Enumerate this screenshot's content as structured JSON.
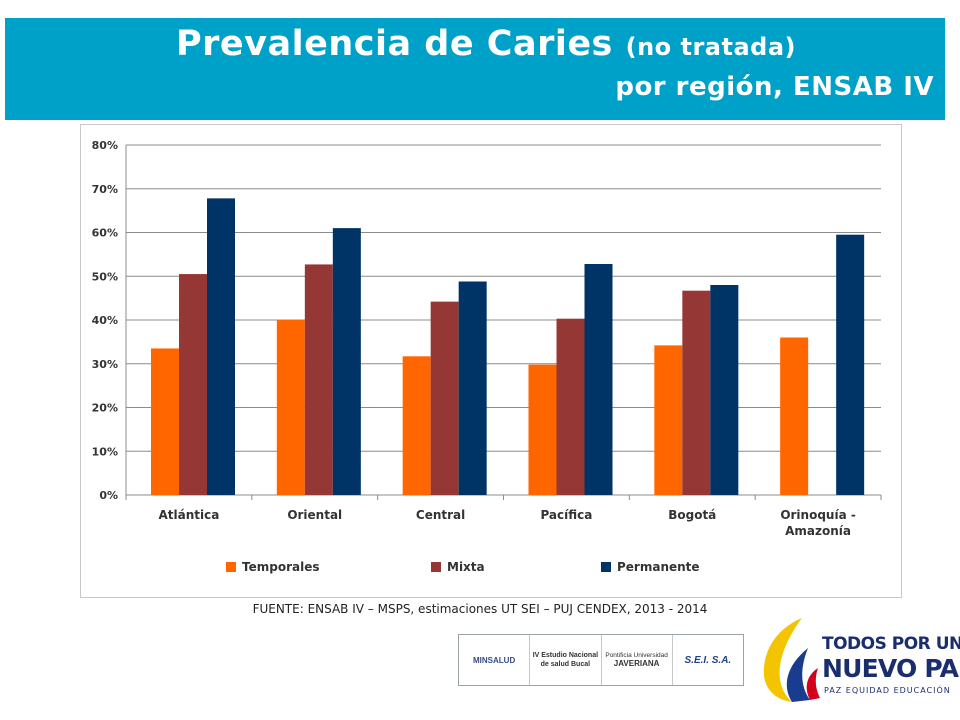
{
  "header": {
    "title_main": "Prevalencia de Caries",
    "title_paren": "(no tratada)",
    "title_sub": "por región, ENSAB IV"
  },
  "colors": {
    "banner": "#00a1c9",
    "temporales": "#ff6600",
    "mixta": "#953735",
    "permanente": "#003366"
  },
  "chart_data": {
    "type": "bar",
    "title": "",
    "xlabel": "",
    "ylabel": "",
    "ylim": [
      0,
      0.8
    ],
    "yticks": [
      "0%",
      "10%",
      "20%",
      "30%",
      "40%",
      "50%",
      "60%",
      "70%",
      "80%"
    ],
    "grid": true,
    "legend_position": "bottom",
    "categories": [
      "Atlántica",
      "Oriental",
      "Central",
      "Pacífica",
      "Bogotá",
      "Orinoquía - Amazonía"
    ],
    "series": [
      {
        "name": "Temporales",
        "values": [
          0.335,
          0.4,
          0.317,
          0.298,
          0.342,
          0.36
        ]
      },
      {
        "name": "Mixta",
        "values": [
          0.505,
          0.527,
          0.442,
          0.403,
          0.467,
          null
        ]
      },
      {
        "name": "Permanente",
        "values": [
          0.678,
          0.61,
          0.488,
          0.528,
          0.48,
          0.595
        ]
      }
    ]
  },
  "footer": {
    "source": "FUENTE: ENSAB IV – MSPS, estimaciones UT SEI – PUJ CENDEX, 2013 - 2014",
    "logos": {
      "minsalud": "MINSALUD",
      "estudio_line1": "IV Estudio Nacional",
      "estudio_line2": "de salud Bucal",
      "javeriana_line1": "Pontificia Universidad",
      "javeriana_line2": "JAVERIANA",
      "sei": "S.E.I. S.A."
    },
    "brand": {
      "line1": "TODOS POR UN",
      "line2": "NUEVO PAÍS",
      "line3": "PAZ  EQUIDAD  EDUCACIÓN"
    }
  }
}
